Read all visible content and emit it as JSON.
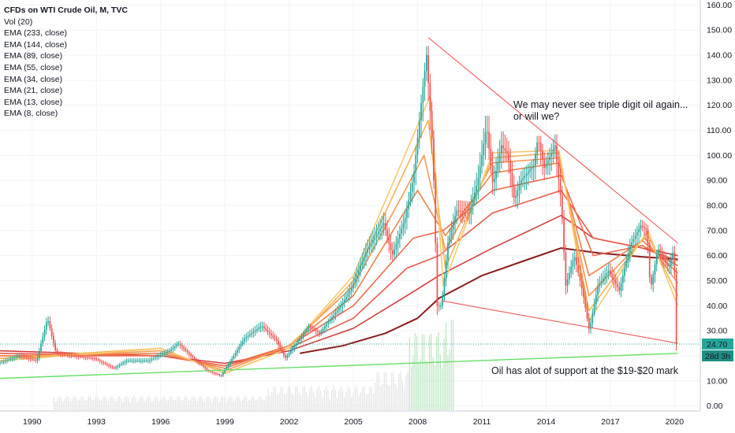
{
  "chart_data": {
    "type": "candlestick",
    "title": "CFDs on WTI Crude Oil, M, TVC",
    "indicators": [
      "Vol (20)",
      "EMA (233, close)",
      "EMA (144, close)",
      "EMA (89, close)",
      "EMA (55, close)",
      "EMA (34, close)",
      "EMA (21, close)",
      "EMA (13, close)",
      "EMA (8, close)"
    ],
    "x_ticks": [
      "1990",
      "1993",
      "1996",
      "1999",
      "2002",
      "2005",
      "2008",
      "2011",
      "2014",
      "2017",
      "2020"
    ],
    "x_range": [
      1988.5,
      2021.2
    ],
    "y_ticks": [
      "160.00",
      "150.00",
      "140.00",
      "130.00",
      "120.00",
      "110.00",
      "100.00",
      "90.00",
      "80.00",
      "70.00",
      "60.00",
      "50.00",
      "40.00",
      "30.00",
      "20.00",
      "10.00",
      "0.00"
    ],
    "y_range": [
      -2,
      162
    ],
    "last_price": "24.70",
    "countdown": "28d 3h",
    "colors": {
      "up": "#26a69a",
      "down": "#ef5350",
      "support": "#66e066",
      "wedge": "#f05a5a",
      "last_price": "#26a69a"
    },
    "price_anchors": [
      [
        1988.5,
        17
      ],
      [
        1989.5,
        20
      ],
      [
        1990.3,
        18
      ],
      [
        1990.8,
        35
      ],
      [
        1991.2,
        21
      ],
      [
        1992.0,
        20
      ],
      [
        1993.0,
        19
      ],
      [
        1993.9,
        15
      ],
      [
        1994.5,
        18
      ],
      [
        1995.5,
        18
      ],
      [
        1996.5,
        22
      ],
      [
        1996.9,
        25
      ],
      [
        1997.5,
        20
      ],
      [
        1998.3,
        14
      ],
      [
        1998.9,
        12
      ],
      [
        1999.5,
        20
      ],
      [
        2000.0,
        27
      ],
      [
        2000.8,
        32
      ],
      [
        2001.5,
        26
      ],
      [
        2001.9,
        19
      ],
      [
        2002.5,
        26
      ],
      [
        2003.0,
        32
      ],
      [
        2003.5,
        29
      ],
      [
        2004.5,
        40
      ],
      [
        2005.0,
        47
      ],
      [
        2005.7,
        62
      ],
      [
        2006.5,
        73
      ],
      [
        2006.9,
        60
      ],
      [
        2007.5,
        75
      ],
      [
        2007.9,
        92
      ],
      [
        2008.3,
        125
      ],
      [
        2008.5,
        140
      ],
      [
        2008.8,
        100
      ],
      [
        2009.0,
        40
      ],
      [
        2009.2,
        40
      ],
      [
        2009.5,
        65
      ],
      [
        2009.9,
        78
      ],
      [
        2010.5,
        77
      ],
      [
        2010.9,
        90
      ],
      [
        2011.3,
        112
      ],
      [
        2011.6,
        88
      ],
      [
        2012.0,
        104
      ],
      [
        2012.3,
        100
      ],
      [
        2012.6,
        82
      ],
      [
        2012.9,
        90
      ],
      [
        2013.5,
        96
      ],
      [
        2013.7,
        107
      ],
      [
        2014.0,
        95
      ],
      [
        2014.5,
        104
      ],
      [
        2014.8,
        80
      ],
      [
        2015.0,
        48
      ],
      [
        2015.4,
        60
      ],
      [
        2015.8,
        45
      ],
      [
        2016.1,
        30
      ],
      [
        2016.5,
        48
      ],
      [
        2017.0,
        54
      ],
      [
        2017.5,
        46
      ],
      [
        2018.0,
        64
      ],
      [
        2018.5,
        72
      ],
      [
        2018.8,
        70
      ],
      [
        2018.95,
        46
      ],
      [
        2019.3,
        63
      ],
      [
        2019.8,
        55
      ],
      [
        2020.0,
        61
      ],
      [
        2020.1,
        51
      ],
      [
        2020.15,
        24.7
      ]
    ],
    "volume_bars": [
      [
        1991.0,
        2001.0,
        4
      ],
      [
        2001.0,
        2006.0,
        8
      ],
      [
        2006.0,
        2007.6,
        14
      ],
      [
        2007.6,
        2009.3,
        30
      ],
      [
        2009.3,
        2009.7,
        36
      ]
    ],
    "ema_series": [
      {
        "name": "EMA (233, close)",
        "color": "#8b1a1a",
        "points": [
          [
            2002.5,
            21
          ],
          [
            2004.5,
            24
          ],
          [
            2006.5,
            29
          ],
          [
            2008.0,
            35
          ],
          [
            2009.0,
            43
          ],
          [
            2011.0,
            52
          ],
          [
            2013.0,
            58
          ],
          [
            2014.7,
            63
          ],
          [
            2016.5,
            61
          ],
          [
            2018.5,
            59.5
          ],
          [
            2020.15,
            58.5
          ]
        ]
      },
      {
        "name": "EMA (144, close)",
        "color": "#d23c3c",
        "points": [
          [
            1988.5,
            22
          ],
          [
            1996.0,
            20
          ],
          [
            1999.0,
            17
          ],
          [
            2002.0,
            22
          ],
          [
            2005.0,
            31
          ],
          [
            2007.5,
            44
          ],
          [
            2009.0,
            52
          ],
          [
            2011.5,
            63
          ],
          [
            2014.7,
            76
          ],
          [
            2016.2,
            67
          ],
          [
            2018.5,
            63
          ],
          [
            2020.15,
            60
          ]
        ]
      },
      {
        "name": "EMA (89, close)",
        "color": "#e85a4a",
        "points": [
          [
            1988.5,
            21
          ],
          [
            1996.0,
            20
          ],
          [
            1999.0,
            16
          ],
          [
            2002.0,
            23
          ],
          [
            2005.0,
            35
          ],
          [
            2007.5,
            55
          ],
          [
            2009.0,
            60
          ],
          [
            2011.5,
            77
          ],
          [
            2014.7,
            86
          ],
          [
            2016.2,
            67
          ],
          [
            2018.5,
            63
          ],
          [
            2020.15,
            58
          ]
        ]
      },
      {
        "name": "EMA (55, close)",
        "color": "#ef6a4a",
        "points": [
          [
            1988.5,
            20
          ],
          [
            1996.0,
            20
          ],
          [
            1999.0,
            16
          ],
          [
            2002.0,
            24
          ],
          [
            2005.0,
            40
          ],
          [
            2007.8,
            67
          ],
          [
            2009.2,
            70
          ],
          [
            2011.5,
            86
          ],
          [
            2014.7,
            92
          ],
          [
            2016.2,
            60
          ],
          [
            2018.5,
            64
          ],
          [
            2020.15,
            56
          ]
        ]
      },
      {
        "name": "EMA (34, close)",
        "color": "#f2804a",
        "points": [
          [
            1988.5,
            20
          ],
          [
            1996.0,
            21
          ],
          [
            1999.0,
            15
          ],
          [
            2002.0,
            24
          ],
          [
            2005.0,
            44
          ],
          [
            2008.0,
            86
          ],
          [
            2009.3,
            68
          ],
          [
            2011.5,
            93
          ],
          [
            2014.6,
            97
          ],
          [
            2016.0,
            52
          ],
          [
            2018.5,
            66
          ],
          [
            2020.15,
            53
          ]
        ]
      },
      {
        "name": "EMA (21, close)",
        "color": "#f59a52",
        "points": [
          [
            1988.5,
            19
          ],
          [
            1996.0,
            22
          ],
          [
            1999.0,
            14
          ],
          [
            2002.0,
            24
          ],
          [
            2005.0,
            48
          ],
          [
            2008.3,
            100
          ],
          [
            2009.3,
            62
          ],
          [
            2011.5,
            97
          ],
          [
            2014.6,
            99
          ],
          [
            2016.0,
            44
          ],
          [
            2018.6,
            67
          ],
          [
            2020.15,
            49
          ]
        ]
      },
      {
        "name": "EMA (13, close)",
        "color": "#f7b25a",
        "points": [
          [
            1988.5,
            19
          ],
          [
            1996.0,
            23
          ],
          [
            1999.0,
            13
          ],
          [
            2002.0,
            23
          ],
          [
            2005.0,
            50
          ],
          [
            2008.5,
            114
          ],
          [
            2009.3,
            55
          ],
          [
            2011.5,
            99
          ],
          [
            2014.6,
            101
          ],
          [
            2016.0,
            38
          ],
          [
            2018.7,
            69
          ],
          [
            2020.15,
            44
          ]
        ]
      },
      {
        "name": "EMA (8, close)",
        "color": "#f9c86a",
        "points": [
          [
            1988.5,
            18
          ],
          [
            1996.0,
            23
          ],
          [
            1999.0,
            13
          ],
          [
            2002.0,
            23
          ],
          [
            2005.0,
            52
          ],
          [
            2008.6,
            124
          ],
          [
            2009.2,
            48
          ],
          [
            2011.5,
            101
          ],
          [
            2014.6,
            102
          ],
          [
            2016.0,
            34
          ],
          [
            2018.75,
            70
          ],
          [
            2020.15,
            40
          ]
        ]
      }
    ],
    "trendlines": [
      {
        "name": "wedge-upper",
        "from": [
          2008.5,
          147
        ],
        "to": [
          2020.15,
          65
        ]
      },
      {
        "name": "wedge-lower",
        "from": [
          2009.1,
          42
        ],
        "to": [
          2020.15,
          25
        ]
      },
      {
        "name": "support-line",
        "from": [
          1988.5,
          11
        ],
        "to": [
          2020.15,
          21
        ]
      }
    ],
    "annotations": [
      {
        "lines": [
          "We may never see triple digit oil again...",
          "or will we?"
        ]
      },
      {
        "lines": [
          "Oil has alot of support at the $19-$20 mark"
        ]
      }
    ]
  }
}
